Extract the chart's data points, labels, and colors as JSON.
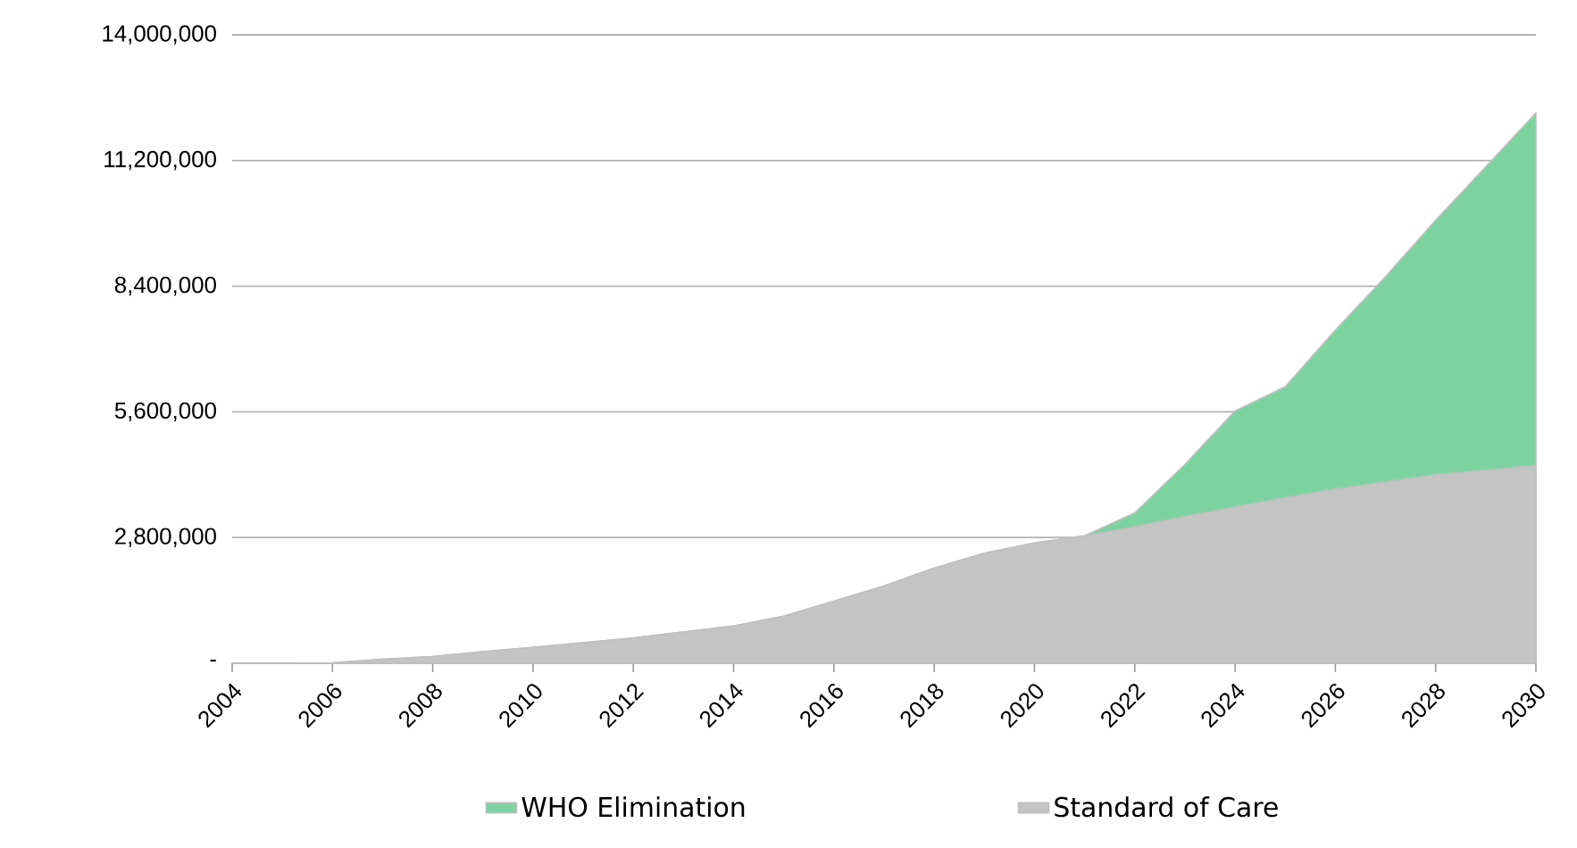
{
  "chart_data": {
    "type": "area",
    "x": [
      2004,
      2005,
      2006,
      2007,
      2008,
      2009,
      2010,
      2011,
      2012,
      2013,
      2014,
      2015,
      2016,
      2017,
      2018,
      2019,
      2020,
      2021,
      2022,
      2023,
      2024,
      2025,
      2026,
      2027,
      2028,
      2029,
      2030
    ],
    "series": [
      {
        "name": "WHO Elimination",
        "color": "#7dd3a0",
        "values": [
          0,
          0,
          10000,
          88000,
          150000,
          258000,
          350000,
          457000,
          563000,
          696000,
          829000,
          1050000,
          1380000,
          1720000,
          2120000,
          2450000,
          2680000,
          2840000,
          3350000,
          4430000,
          5620000,
          6160000,
          7420000,
          8610000,
          9870000,
          11060000,
          12260000
        ]
      },
      {
        "name": "Standard of Care",
        "color": "#c4c4c4",
        "values": [
          0,
          0,
          10000,
          88000,
          150000,
          258000,
          350000,
          457000,
          563000,
          696000,
          829000,
          1050000,
          1380000,
          1720000,
          2120000,
          2450000,
          2680000,
          2840000,
          3040000,
          3270000,
          3480000,
          3690000,
          3880000,
          4040000,
          4200000,
          4300000,
          4410000
        ]
      }
    ],
    "xlim": [
      2004,
      2030
    ],
    "xticks": [
      2004,
      2006,
      2008,
      2010,
      2012,
      2014,
      2016,
      2018,
      2020,
      2022,
      2024,
      2026,
      2028,
      2030
    ],
    "ylim": [
      0,
      14000000
    ],
    "yticks": [
      {
        "value": 0,
        "label": "-"
      },
      {
        "value": 2800000,
        "label": "2,800,000"
      },
      {
        "value": 5600000,
        "label": "5,600,000"
      },
      {
        "value": 8400000,
        "label": "8,400,000"
      },
      {
        "value": 11200000,
        "label": "11,200,000"
      },
      {
        "value": 14000000,
        "label": "14,000,000"
      }
    ],
    "grid": "y",
    "legend": "bottom",
    "marker": "none"
  }
}
